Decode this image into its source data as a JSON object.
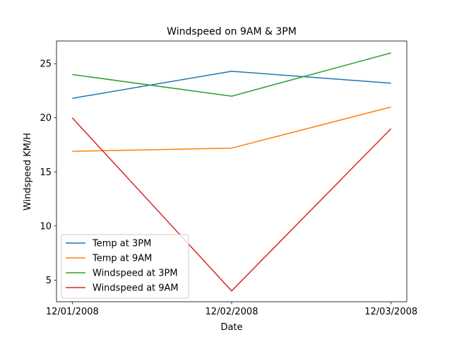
{
  "chart_data": {
    "type": "line",
    "title": "Windspeed on 9AM & 3PM",
    "xlabel": "Date",
    "ylabel": "Windspeed KM/H",
    "categories": [
      "12/01/2008",
      "12/02/2008",
      "12/03/2008"
    ],
    "yticks": [
      5,
      10,
      15,
      20,
      25
    ],
    "ylim": [
      3.0,
      27.1
    ],
    "grid": false,
    "legend_position": "lower-left",
    "series": [
      {
        "name": "Temp at 3PM",
        "color": "#1f77b4",
        "values": [
          21.8,
          24.3,
          23.2
        ]
      },
      {
        "name": "Temp at 9AM",
        "color": "#ff7f0e",
        "values": [
          16.9,
          17.2,
          21.0
        ]
      },
      {
        "name": "Windspeed at 3PM",
        "color": "#2ca02c",
        "values": [
          24.0,
          22.0,
          26.0
        ]
      },
      {
        "name": "Windspeed at 9AM",
        "color": "#d62728",
        "values": [
          20.0,
          4.0,
          19.0
        ]
      }
    ]
  }
}
